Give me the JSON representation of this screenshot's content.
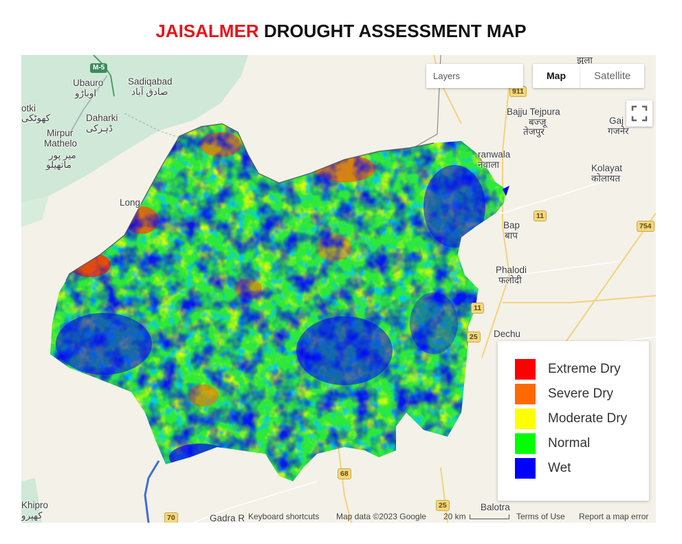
{
  "title": {
    "district": "JAISALMER",
    "rest": "DROUGHT ASSESSMENT MAP"
  },
  "controls": {
    "layers_placeholder": "Layers",
    "map_type_options": [
      "Map",
      "Satellite"
    ],
    "map_type_selected": "Map",
    "fullscreen_icon": "fullscreen-icon"
  },
  "legend": [
    {
      "label": "Extreme Dry",
      "color": "#ff0000"
    },
    {
      "label": "Severe Dry",
      "color": "#ff6a00"
    },
    {
      "label": "Moderate Dry",
      "color": "#ffff00"
    },
    {
      "label": "Normal",
      "color": "#00ff00"
    },
    {
      "label": "Wet",
      "color": "#0000ff"
    }
  ],
  "places": {
    "ubauro": "Ubauro",
    "ubauro_ur": "اوباڑو",
    "sadiqabad": "Sadiqabad",
    "sadiqabad_ur": "صادق آباد",
    "otki": "otki",
    "otki_ur": "کھوٹکی",
    "daharki": "Daharki",
    "daharki_ur": "ڈہرکی",
    "mirpur": "Mirpur",
    "mathelo": "Mathelo",
    "mirpur_ur": "میر پور",
    "mathelo_ur": "ماتھیلو",
    "longewala": "Long",
    "bajju": "Bajju Tejpura",
    "bajju_hi": "बज्जू",
    "bajju_hi2": "तेजपुर",
    "ranwala": "ranwala",
    "ranwala_hi": "नवाला",
    "gaj": "Gaj",
    "gaj_hi": "गजनेर",
    "kolayat": "Kolayat",
    "kolayat_hi": "कोलायत",
    "bap": "Bap",
    "bap_hi": "बाप",
    "phalodi": "Phalodi",
    "phalodi_hi": "फलोदी",
    "dechu": "Dechu",
    "balotra": "Balotra",
    "khipro": "Khipro",
    "khipro_ur": "کھپرو",
    "gadra": "Gadra R",
    "top_hi": "झुला"
  },
  "road_shields": {
    "m5": "M-5",
    "n911": "911",
    "n11a": "11",
    "n754": "754",
    "n11b": "11",
    "n25a": "25",
    "n68": "68",
    "n25b": "25",
    "n70": "70"
  },
  "attribution": {
    "keyboard": "Keyboard shortcuts",
    "mapdata": "Map data ©2023 Google",
    "scale": "20 km",
    "terms": "Terms of Use",
    "report": "Report a map error"
  },
  "colors": {
    "title_red": "#e8141a",
    "extreme_dry": "#ff0000",
    "severe_dry": "#ff6a00",
    "moderate_dry": "#ffff00",
    "normal": "#00ff00",
    "wet": "#0000ff"
  }
}
